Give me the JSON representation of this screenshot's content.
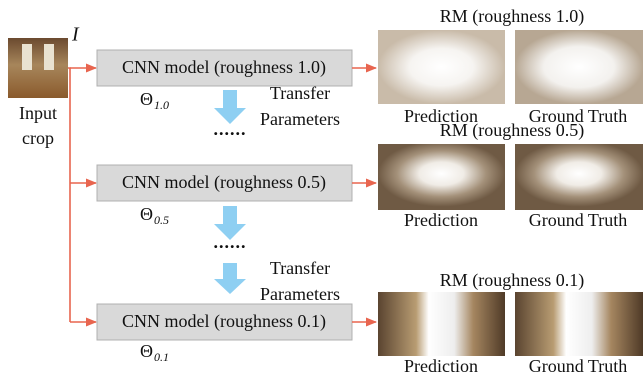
{
  "input": {
    "symbol": "I",
    "label_lines": [
      "Input",
      "crop"
    ]
  },
  "stages": [
    {
      "model": "CNN model (roughness 1.0)",
      "param": "Θ",
      "param_sub": "1.0",
      "result_title": "RM (roughness 1.0)",
      "prediction": "Prediction",
      "ground_truth": "Ground Truth"
    },
    {
      "model": "CNN model (roughness 0.5)",
      "param": "Θ",
      "param_sub": "0.5",
      "result_title": "RM (roughness 0.5)",
      "prediction": "Prediction",
      "ground_truth": "Ground Truth"
    },
    {
      "model": "CNN model (roughness 0.1)",
      "param": "Θ",
      "param_sub": "0.1",
      "result_title": "RM (roughness 0.1)",
      "prediction": "Prediction",
      "ground_truth": "Ground Truth"
    }
  ],
  "transfers": [
    {
      "lines": [
        "Transfer",
        "Parameters"
      ],
      "ellipsis": "......"
    },
    {
      "lines": [
        "Transfer",
        "Parameters"
      ],
      "ellipsis": "......"
    }
  ]
}
